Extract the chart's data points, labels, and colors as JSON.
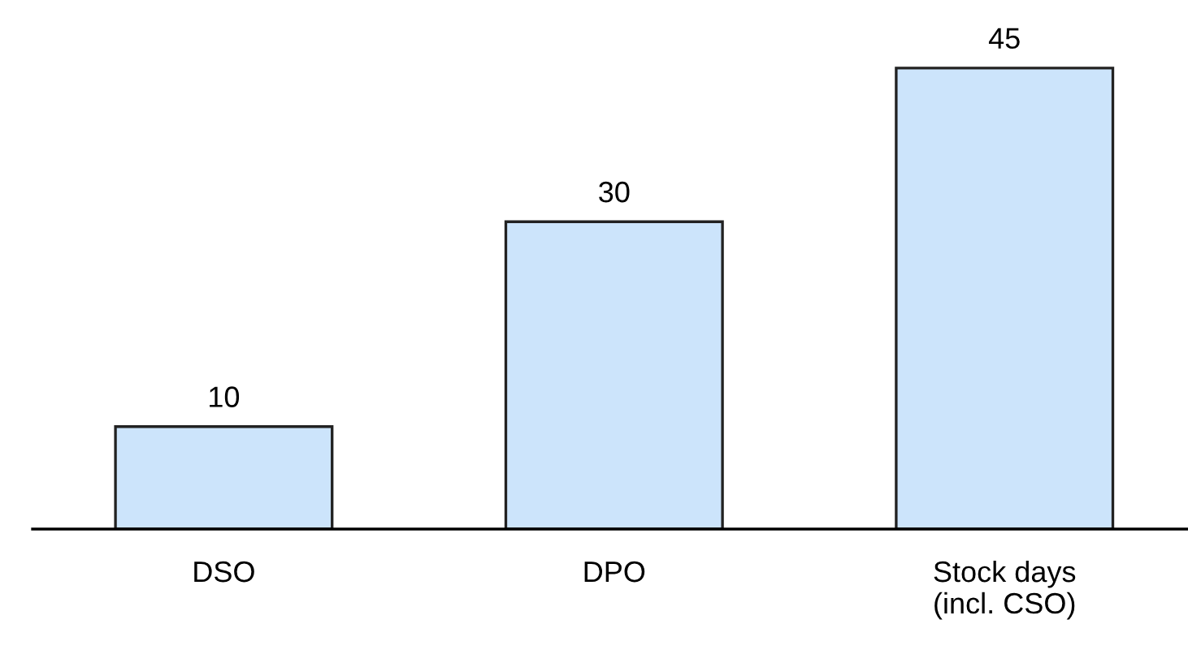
{
  "chart_data": {
    "type": "bar",
    "categories": [
      "DSO",
      "DPO",
      "Stock days\n(incl. CSO)"
    ],
    "values": [
      10,
      30,
      45
    ],
    "color": "#cce4fb",
    "data_labels": true,
    "grid": false
  }
}
